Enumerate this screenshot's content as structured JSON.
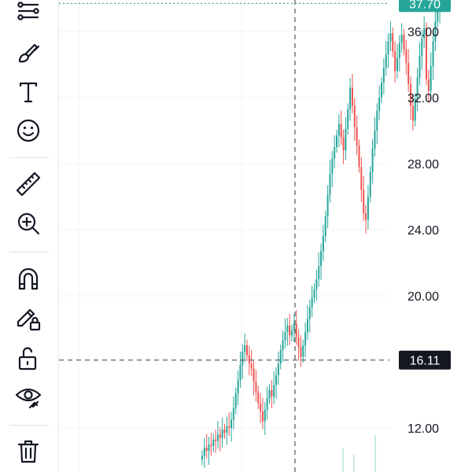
{
  "toolbar": {
    "tools": [
      {
        "name": "fib-retracement-icon"
      },
      {
        "name": "brush-icon"
      },
      {
        "name": "text-icon",
        "glyph": "T"
      },
      {
        "name": "emoji-icon"
      },
      {
        "name": "ruler-icon"
      },
      {
        "name": "zoom-in-icon"
      },
      {
        "name": "magnet-icon"
      },
      {
        "name": "lock-drawings-icon"
      },
      {
        "name": "unlock-icon"
      },
      {
        "name": "eye-icon"
      },
      {
        "name": "trash-icon"
      }
    ]
  },
  "chart": {
    "up_color": "#26a69a",
    "down_color": "#ef5350",
    "last_price": "37.70",
    "last_price_color": "#26a69a",
    "crosshair_price": "16.11",
    "crosshair_badge_color": "#131722",
    "y_ticks": [
      {
        "label": "36.00",
        "value": 36
      },
      {
        "label": "32.00",
        "value": 32
      },
      {
        "label": "28.00",
        "value": 28
      },
      {
        "label": "24.00",
        "value": 24
      },
      {
        "label": "20.00",
        "value": 20
      },
      {
        "label": "12.00",
        "value": 12
      }
    ]
  },
  "chart_data": {
    "type": "candlestick",
    "ylim": [
      10.5,
      38.2
    ],
    "series": [
      {
        "values": [
          10.3,
          10.8,
          10.6,
          11.0,
          10.9,
          11.3,
          11.2,
          11.6,
          11.4,
          11.9,
          11.7,
          12.1,
          12.0,
          12.5,
          13.2,
          14.1,
          14.9,
          15.8,
          16.6,
          17.0,
          16.4,
          15.9,
          15.6,
          14.8,
          14.2,
          13.5,
          13.0,
          12.4,
          13.1,
          13.8,
          14.3,
          13.9,
          14.6,
          15.2,
          15.9,
          16.7,
          17.3,
          17.8,
          18.2,
          17.6,
          17.9,
          18.3,
          17.5,
          16.9,
          16.3,
          17.0,
          17.8,
          18.6,
          19.3,
          19.9,
          20.4,
          21.0,
          21.8,
          22.7,
          23.6,
          24.8,
          26.1,
          27.4,
          28.3,
          29.0,
          29.7,
          30.4,
          29.6,
          28.8,
          30.1,
          31.3,
          32.6,
          31.5,
          30.2,
          29.1,
          27.8,
          26.4,
          25.0,
          24.6,
          26.0,
          27.5,
          28.9,
          30.0,
          31.2,
          32.0,
          32.9,
          33.8,
          34.6,
          35.4,
          35.9,
          34.8,
          33.6,
          34.4,
          35.3,
          35.8,
          34.9,
          34.1,
          32.8,
          31.5,
          30.6,
          31.9,
          33.2,
          34.5,
          35.6,
          36.2,
          33.1,
          32.4,
          33.9,
          35.4,
          36.6,
          37.2,
          37.7
        ]
      }
    ]
  }
}
